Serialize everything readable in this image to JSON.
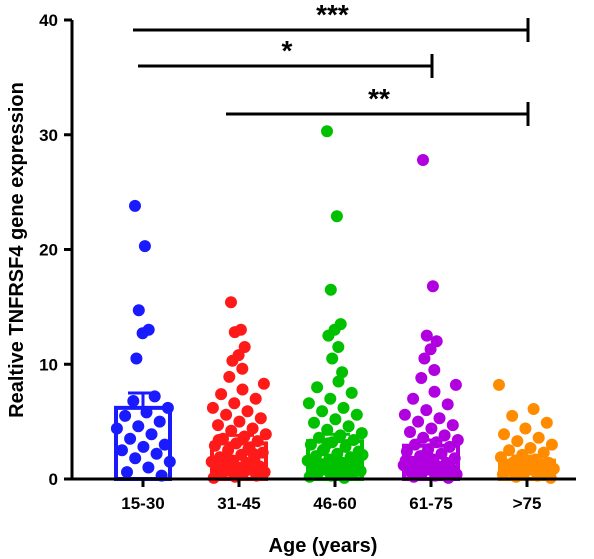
{
  "chart_data": {
    "type": "bar",
    "xlabel": "Age (years)",
    "ylabel": "Realtive TNFRSF4 gene expression",
    "ylim": [
      0,
      40
    ],
    "yticks": [
      0,
      10,
      20,
      30,
      40
    ],
    "grid": false,
    "categories": [
      "15-30",
      "31-45",
      "46-60",
      "61-75",
      ">75"
    ],
    "colors": [
      "#1a1aff",
      "#ff1a1a",
      "#00c000",
      "#b000e0",
      "#ff8c00"
    ],
    "means": [
      6.2,
      3.1,
      3.3,
      2.9,
      1.6
    ],
    "sem_upper": [
      7.5,
      3.8,
      3.9,
      3.4,
      2.0
    ],
    "points": [
      [
        23.8,
        20.3,
        14.7,
        13.0,
        12.7,
        10.5,
        7.2,
        6.8,
        6.2,
        5.8,
        5.5,
        5.0,
        4.6,
        4.4,
        3.9,
        3.5,
        3.0,
        2.8,
        2.5,
        2.2,
        1.8,
        1.5,
        1.0,
        0.6,
        0.3
      ],
      [
        15.4,
        13.0,
        12.8,
        11.5,
        10.8,
        10.3,
        9.6,
        8.9,
        8.3,
        7.8,
        7.4,
        7.0,
        6.6,
        6.2,
        5.9,
        5.6,
        5.3,
        5.0,
        4.7,
        4.4,
        4.2,
        3.9,
        3.7,
        3.5,
        3.3,
        3.1,
        2.9,
        2.7,
        2.5,
        2.3,
        2.1,
        1.9,
        1.8,
        1.6,
        1.5,
        1.4,
        1.2,
        1.1,
        1.0,
        0.9,
        0.8,
        0.7,
        0.6,
        0.5,
        0.4,
        0.3,
        0.2,
        0.1,
        2.6,
        1.7,
        0.9,
        0.5,
        3.4,
        2.2,
        1.3
      ],
      [
        30.3,
        22.9,
        16.5,
        13.5,
        13.0,
        12.5,
        11.5,
        10.5,
        9.3,
        8.5,
        8.0,
        7.5,
        7.0,
        6.6,
        6.2,
        5.9,
        5.6,
        5.2,
        4.9,
        4.6,
        4.3,
        4.0,
        3.8,
        3.6,
        3.4,
        3.2,
        3.0,
        2.8,
        2.6,
        2.4,
        2.2,
        2.0,
        1.9,
        1.7,
        1.6,
        1.4,
        1.3,
        1.2,
        1.1,
        1.0,
        0.9,
        0.8,
        0.7,
        0.6,
        0.5,
        0.4,
        0.3,
        0.2,
        0.1,
        2.5,
        1.8,
        1.2,
        0.8,
        0.5,
        3.1,
        2.1
      ],
      [
        27.8,
        16.8,
        12.5,
        12.0,
        11.3,
        10.5,
        9.5,
        8.8,
        8.2,
        7.6,
        7.0,
        6.5,
        6.0,
        5.6,
        5.3,
        5.0,
        4.7,
        4.4,
        4.1,
        3.8,
        3.6,
        3.4,
        3.2,
        3.0,
        2.8,
        2.6,
        2.4,
        2.2,
        2.0,
        1.8,
        1.7,
        1.5,
        1.4,
        1.3,
        1.2,
        1.1,
        1.0,
        0.9,
        0.8,
        0.7,
        0.6,
        0.5,
        0.4,
        0.3,
        0.2,
        0.1,
        2.3,
        1.6,
        0.9,
        0.4
      ],
      [
        8.2,
        6.1,
        5.5,
        4.9,
        4.4,
        3.9,
        3.6,
        3.3,
        3.0,
        2.7,
        2.5,
        2.3,
        2.1,
        1.9,
        1.7,
        1.5,
        1.4,
        1.3,
        1.2,
        1.1,
        1.0,
        0.9,
        0.8,
        0.7,
        0.6,
        0.5,
        0.4,
        0.3,
        0.2,
        0.1,
        1.6,
        1.1,
        0.6
      ]
    ],
    "significance": [
      {
        "from": "15-30",
        "to": ">75",
        "label": "***"
      },
      {
        "from": "15-30",
        "to": "61-75",
        "label": "*"
      },
      {
        "from": "31-45",
        "to": ">75",
        "label": "**"
      }
    ]
  }
}
